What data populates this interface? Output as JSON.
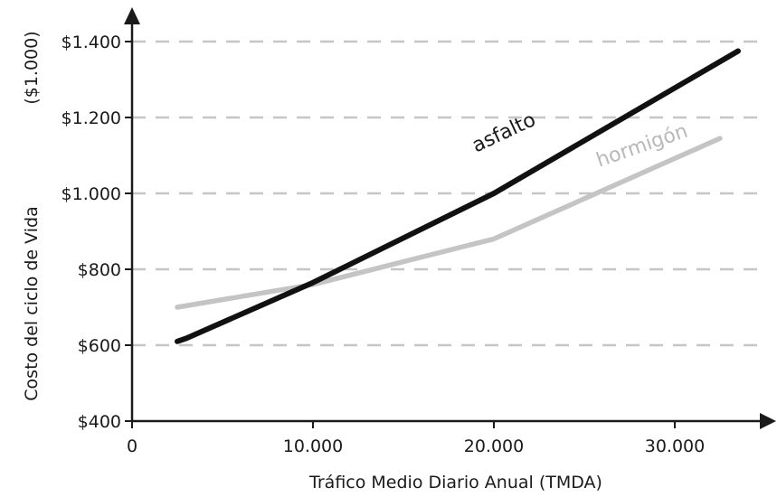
{
  "chart_data": {
    "type": "line",
    "title": "",
    "xlabel": "Tráfico Medio Diario Anual (TMDA)",
    "ylabel": "Costo del ciclo de Vida",
    "ylabel_unit": "($1.000)",
    "xlim": [
      0,
      35000
    ],
    "ylim": [
      400,
      1400
    ],
    "x_ticks": [
      0,
      10000,
      20000,
      30000
    ],
    "x_tick_labels": [
      "0",
      "10.000",
      "20.000",
      "30.000"
    ],
    "y_ticks": [
      400,
      600,
      800,
      1000,
      1200,
      1400
    ],
    "y_tick_labels": [
      "$400",
      "$600",
      "$800",
      "$1.000",
      "$1.200",
      "$1.400"
    ],
    "grid": "horizontal dashed",
    "series": [
      {
        "name": "asfalto",
        "color": "#111111",
        "x": [
          2500,
          3000,
          10000,
          20000,
          33500
        ],
        "y": [
          610,
          618,
          765,
          1000,
          1375
        ]
      },
      {
        "name": "hormigón",
        "color": "#c4c4c4",
        "x": [
          2500,
          10000,
          20000,
          32500
        ],
        "y": [
          700,
          760,
          880,
          1145
        ]
      }
    ]
  }
}
